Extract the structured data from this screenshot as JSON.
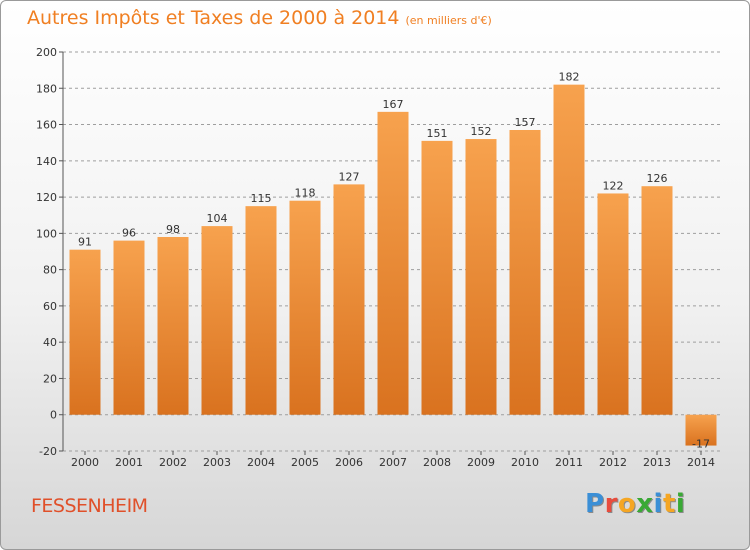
{
  "title": "Autres Impôts et Taxes de 2000 à 2014",
  "subtitle": "(en milliers d'€)",
  "commune": "FESSENHEIM",
  "logo": {
    "letters": [
      "P",
      "r",
      "o",
      "x",
      "i",
      "t",
      "i"
    ]
  },
  "colors": {
    "bar_light": "#f7a24e",
    "bar_dark": "#d9721f",
    "title": "#f07f22",
    "commune": "#e0502a",
    "grid": "#9e9e9e",
    "logo": [
      "#3b8fd6",
      "#e84c3d",
      "#f5a623",
      "#39a935",
      "#3b8fd6",
      "#f5a623",
      "#39a935"
    ]
  },
  "chart_data": {
    "type": "bar",
    "categories": [
      "2000",
      "2001",
      "2002",
      "2003",
      "2004",
      "2005",
      "2006",
      "2007",
      "2008",
      "2009",
      "2010",
      "2011",
      "2012",
      "2013",
      "2014"
    ],
    "values": [
      91,
      96,
      98,
      104,
      115,
      118,
      127,
      167,
      151,
      152,
      157,
      182,
      122,
      126,
      -17
    ],
    "value_labels": [
      "91",
      "96",
      "98",
      "104",
      "115",
      "118",
      "127",
      "167",
      "151",
      "152",
      "157",
      "182",
      "122",
      "126",
      "-17"
    ],
    "title": "Autres Impôts et Taxes de 2000 à 2014",
    "subtitle": "(en milliers d'€)",
    "xlabel": "",
    "ylabel": "",
    "ylim": [
      -20,
      200
    ],
    "yticks": [
      -20,
      0,
      20,
      40,
      60,
      80,
      100,
      120,
      140,
      160,
      180,
      200
    ],
    "grid": "horizontal dashed",
    "legend": "none"
  }
}
